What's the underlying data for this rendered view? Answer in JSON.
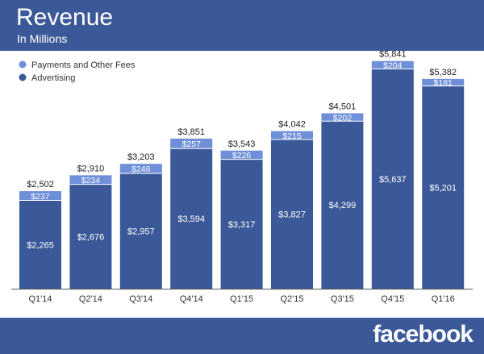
{
  "header": {
    "title": "Revenue",
    "subtitle": "In Millions"
  },
  "footer": {
    "logo_text": "facebook"
  },
  "colors": {
    "background_band": "#3b5998",
    "advertising": "#3b5998",
    "payments": "#6f8fd8",
    "totals_text": "#222222",
    "segment_text": "#ffffff"
  },
  "chart_data": {
    "type": "bar",
    "stacked": true,
    "categories": [
      "Q1'14",
      "Q2'14",
      "Q3'14",
      "Q4'14",
      "Q1'15",
      "Q2'15",
      "Q3'15",
      "Q4'15",
      "Q1'16"
    ],
    "series": [
      {
        "name": "Advertising",
        "values": [
          2265,
          2676,
          2957,
          3594,
          3317,
          3827,
          4299,
          5637,
          5201
        ]
      },
      {
        "name": "Payments and Other Fees",
        "values": [
          237,
          234,
          246,
          257,
          226,
          215,
          202,
          204,
          181
        ]
      }
    ],
    "totals": [
      2502,
      2910,
      3203,
      3851,
      3543,
      4042,
      4501,
      5841,
      5382
    ],
    "value_labels": {
      "Advertising": [
        "$2,265",
        "$2,676",
        "$2,957",
        "$3,594",
        "$3,317",
        "$3,827",
        "$4,299",
        "$5,637",
        "$5,201"
      ],
      "Payments and Other Fees": [
        "$237",
        "$234",
        "$246",
        "$257",
        "$226",
        "$215",
        "$202",
        "$204",
        "$181"
      ],
      "totals": [
        "$2,502",
        "$2,910",
        "$3,203",
        "$3,851",
        "$3,543",
        "$4,042",
        "$4,501",
        "$5,841",
        "$5,382"
      ]
    },
    "legend": {
      "position": "top-left",
      "entries": [
        "Payments and Other Fees",
        "Advertising"
      ]
    },
    "ylim": [
      0,
      6000
    ],
    "grid": false
  }
}
